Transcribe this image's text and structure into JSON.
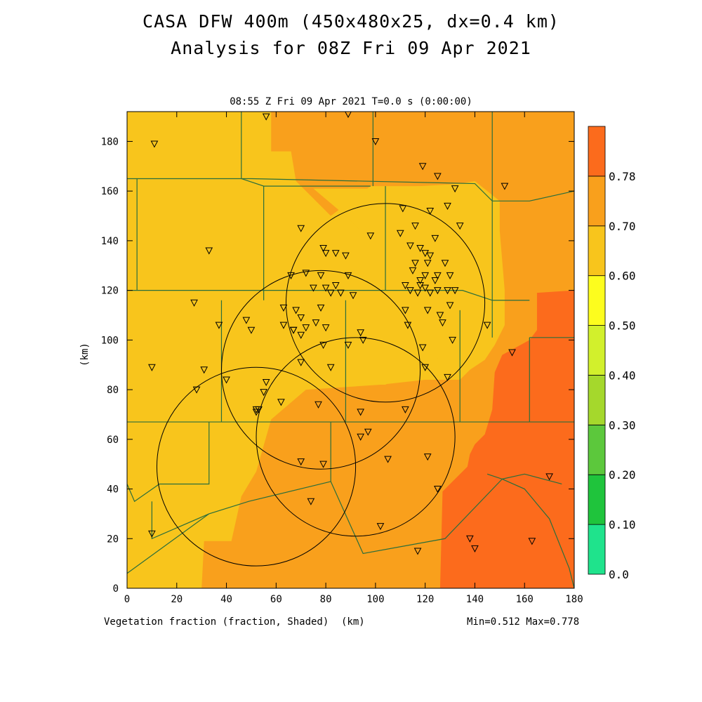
{
  "title_line1": "CASA DFW 400m (450x480x25, dx=0.4 km)",
  "title_line2": "Analysis for 08Z Fri 09 Apr 2021",
  "subtitle": "08:55 Z Fri 09 Apr 2021   T=0.0 s (0:00:00)",
  "xlabel": "Vegetation fraction (fraction, Shaded)",
  "xunit": "(km)",
  "ylabel": "(km)",
  "minmax": "Min=0.512 Max=0.778",
  "colors": {
    "band_0_50": "#f8c51c",
    "band_0_60": "#f9a01c",
    "band_0_70": "#fc6b1c",
    "county_line": "#2a6e3c"
  },
  "chart_data": {
    "type": "heatmap",
    "variable": "Vegetation fraction",
    "units": "fraction",
    "xlim": [
      0,
      180
    ],
    "ylim": [
      0,
      192
    ],
    "xticks": [
      "0",
      "20",
      "40",
      "60",
      "80",
      "100",
      "120",
      "140",
      "160",
      "180"
    ],
    "yticks": [
      "0",
      "20",
      "40",
      "60",
      "80",
      "100",
      "120",
      "140",
      "160",
      "180"
    ],
    "min": 0.512,
    "max": 0.778,
    "colorbar": {
      "levels": [
        "0.0",
        "0.10",
        "0.20",
        "0.30",
        "0.40",
        "0.50",
        "0.60",
        "0.70",
        "0.78"
      ],
      "colors": [
        "#1fe38c",
        "#1fc43c",
        "#5cc83c",
        "#a5d82c",
        "#d2f02c",
        "#fdfd1e",
        "#f8c51c",
        "#f9a01c",
        "#fc6b1c"
      ]
    },
    "field_regions": [
      {
        "band": "0.50-0.60",
        "polygon_km": [
          [
            0,
            192
          ],
          [
            180,
            192
          ],
          [
            180,
            0
          ],
          [
            0,
            0
          ]
        ]
      },
      {
        "band": "0.60-0.70",
        "polygon_km": [
          [
            58,
            192
          ],
          [
            180,
            192
          ],
          [
            180,
            0
          ],
          [
            30,
            0
          ],
          [
            31,
            19
          ],
          [
            42,
            19
          ],
          [
            46,
            37
          ],
          [
            52,
            47
          ],
          [
            58,
            68
          ],
          [
            72,
            80
          ],
          [
            102,
            82
          ],
          [
            120,
            84
          ],
          [
            134,
            84
          ],
          [
            138,
            88
          ],
          [
            144,
            92
          ],
          [
            148,
            98
          ],
          [
            152,
            106
          ],
          [
            152,
            120
          ],
          [
            150,
            144
          ],
          [
            150,
            156
          ],
          [
            140,
            164
          ],
          [
            128,
            162
          ],
          [
            104,
            162
          ],
          [
            98,
            162
          ],
          [
            82,
            150
          ],
          [
            68,
            164
          ],
          [
            66,
            176
          ],
          [
            58,
            176
          ]
        ]
      },
      {
        "band": "0.50-0.60",
        "polygon_km": [
          [
            75,
            161
          ],
          [
            98,
            161
          ],
          [
            118,
            162
          ],
          [
            136,
            163
          ],
          [
            148,
            152
          ],
          [
            150,
            140
          ],
          [
            150,
            122
          ],
          [
            150,
            116
          ],
          [
            145,
            112
          ],
          [
            134,
            103
          ],
          [
            130,
            98
          ],
          [
            126,
            93
          ],
          [
            118,
            90
          ],
          [
            104,
            82
          ],
          [
            92,
            82
          ],
          [
            86,
            83
          ],
          [
            82,
            84
          ],
          [
            82,
            95
          ],
          [
            90,
            110
          ],
          [
            94,
            122
          ],
          [
            98,
            140
          ],
          [
            88,
            150
          ],
          [
            75,
            161
          ]
        ]
      },
      {
        "band": "0.70-0.78",
        "polygon_km": [
          [
            180,
            120
          ],
          [
            165,
            119
          ],
          [
            165,
            104
          ],
          [
            162,
            100
          ],
          [
            151,
            94
          ],
          [
            148,
            87
          ],
          [
            147,
            72
          ],
          [
            144,
            62
          ],
          [
            140,
            58
          ],
          [
            138,
            54
          ],
          [
            137,
            49
          ],
          [
            127,
            39
          ],
          [
            126,
            0
          ],
          [
            180,
            0
          ]
        ]
      }
    ],
    "county_lines_km": [
      [
        [
          0,
          67
        ],
        [
          162,
          67
        ]
      ],
      [
        [
          0,
          120
        ],
        [
          135,
          120
        ],
        [
          147,
          116
        ],
        [
          162,
          116
        ]
      ],
      [
        [
          0,
          165
        ],
        [
          50,
          165
        ],
        [
          140,
          163
        ],
        [
          147,
          156
        ],
        [
          162,
          156
        ],
        [
          180,
          160
        ]
      ],
      [
        [
          4,
          165
        ],
        [
          4,
          120
        ]
      ],
      [
        [
          46,
          192
        ],
        [
          46,
          165
        ],
        [
          55,
          162
        ],
        [
          89,
          162
        ],
        [
          98,
          162
        ]
      ],
      [
        [
          55,
          162
        ],
        [
          55,
          116
        ]
      ],
      [
        [
          38,
          116
        ],
        [
          38,
          67
        ]
      ],
      [
        [
          88,
          116
        ],
        [
          88,
          67
        ]
      ],
      [
        [
          104,
          162
        ],
        [
          104,
          120
        ]
      ],
      [
        [
          99,
          192
        ],
        [
          99,
          162
        ]
      ],
      [
        [
          147,
          192
        ],
        [
          147,
          116
        ]
      ],
      [
        [
          147,
          116
        ],
        [
          147,
          101
        ]
      ],
      [
        [
          162,
          101
        ],
        [
          180,
          101
        ]
      ],
      [
        [
          162,
          101
        ],
        [
          162,
          67
        ]
      ],
      [
        [
          162,
          67
        ],
        [
          180,
          67
        ]
      ],
      [
        [
          134,
          112
        ],
        [
          134,
          67
        ]
      ],
      [
        [
          0,
          6
        ],
        [
          33,
          30
        ],
        [
          49,
          35
        ],
        [
          82,
          43
        ]
      ],
      [
        [
          0,
          42
        ],
        [
          3,
          35
        ],
        [
          13,
          42
        ],
        [
          33,
          42
        ],
        [
          33,
          67
        ]
      ],
      [
        [
          10,
          35
        ],
        [
          10,
          20
        ],
        [
          33,
          30
        ]
      ],
      [
        [
          82,
          43
        ],
        [
          82,
          67
        ]
      ],
      [
        [
          82,
          43
        ],
        [
          95,
          14
        ],
        [
          128,
          20
        ],
        [
          151,
          44
        ]
      ],
      [
        [
          145,
          46
        ],
        [
          151,
          44
        ],
        [
          160,
          46
        ],
        [
          175,
          42
        ]
      ],
      [
        [
          151,
          44
        ],
        [
          160,
          40
        ],
        [
          170,
          28
        ],
        [
          178,
          8
        ],
        [
          180,
          0
        ]
      ]
    ],
    "radar_range_rings_km": [
      {
        "cx": 104,
        "cy": 115,
        "r": 40
      },
      {
        "cx": 78,
        "cy": 88,
        "r": 40
      },
      {
        "cx": 92,
        "cy": 61,
        "r": 40
      },
      {
        "cx": 52,
        "cy": 49,
        "r": 40
      }
    ],
    "station_markers_km": [
      [
        56,
        190
      ],
      [
        89,
        191
      ],
      [
        11,
        179
      ],
      [
        100,
        180
      ],
      [
        119,
        170
      ],
      [
        125,
        166
      ],
      [
        152,
        162
      ],
      [
        132,
        161
      ],
      [
        122,
        152
      ],
      [
        129,
        154
      ],
      [
        134,
        146
      ],
      [
        111,
        153
      ],
      [
        70,
        145
      ],
      [
        116,
        146
      ],
      [
        124,
        141
      ],
      [
        110,
        143
      ],
      [
        98,
        142
      ],
      [
        33,
        136
      ],
      [
        79,
        137
      ],
      [
        84,
        135
      ],
      [
        80,
        135
      ],
      [
        88,
        134
      ],
      [
        114,
        138
      ],
      [
        118,
        137
      ],
      [
        120,
        135
      ],
      [
        122,
        134
      ],
      [
        116,
        131
      ],
      [
        121,
        131
      ],
      [
        128,
        131
      ],
      [
        115,
        128
      ],
      [
        125,
        126
      ],
      [
        120,
        126
      ],
      [
        130,
        126
      ],
      [
        124,
        124
      ],
      [
        118,
        124
      ],
      [
        132,
        120
      ],
      [
        129,
        120
      ],
      [
        120,
        121
      ],
      [
        122,
        119
      ],
      [
        117,
        119
      ],
      [
        112,
        122
      ],
      [
        114,
        120
      ],
      [
        125,
        120
      ],
      [
        118,
        122
      ],
      [
        66,
        126
      ],
      [
        72,
        127
      ],
      [
        78,
        126
      ],
      [
        89,
        126
      ],
      [
        84,
        122
      ],
      [
        86,
        119
      ],
      [
        91,
        118
      ],
      [
        82,
        119
      ],
      [
        75,
        121
      ],
      [
        80,
        121
      ],
      [
        27,
        115
      ],
      [
        63,
        113
      ],
      [
        68,
        112
      ],
      [
        78,
        113
      ],
      [
        76,
        107
      ],
      [
        70,
        109
      ],
      [
        72,
        105
      ],
      [
        67,
        104
      ],
      [
        80,
        105
      ],
      [
        112,
        112
      ],
      [
        121,
        112
      ],
      [
        126,
        110
      ],
      [
        130,
        114
      ],
      [
        127,
        107
      ],
      [
        37,
        106
      ],
      [
        48,
        108
      ],
      [
        50,
        104
      ],
      [
        63,
        106
      ],
      [
        70,
        102
      ],
      [
        67,
        104
      ],
      [
        79,
        98
      ],
      [
        89,
        98
      ],
      [
        94,
        103
      ],
      [
        95,
        100
      ],
      [
        113,
        106
      ],
      [
        145,
        106
      ],
      [
        119,
        97
      ],
      [
        131,
        100
      ],
      [
        155,
        95
      ],
      [
        10,
        89
      ],
      [
        31,
        88
      ],
      [
        70,
        91
      ],
      [
        82,
        89
      ],
      [
        120,
        89
      ],
      [
        129,
        85
      ],
      [
        28,
        80
      ],
      [
        40,
        84
      ],
      [
        55,
        79
      ],
      [
        56,
        83
      ],
      [
        62,
        75
      ],
      [
        77,
        74
      ],
      [
        94,
        71
      ],
      [
        112,
        72
      ],
      [
        52,
        72
      ],
      [
        52,
        71
      ],
      [
        53,
        72
      ],
      [
        94,
        61
      ],
      [
        97,
        63
      ],
      [
        70,
        51
      ],
      [
        79,
        50
      ],
      [
        105,
        52
      ],
      [
        121,
        53
      ],
      [
        125,
        40
      ],
      [
        74,
        35
      ],
      [
        102,
        25
      ],
      [
        170,
        45
      ],
      [
        10,
        22
      ],
      [
        138,
        20
      ],
      [
        140,
        16
      ],
      [
        163,
        19
      ],
      [
        117,
        15
      ]
    ]
  }
}
